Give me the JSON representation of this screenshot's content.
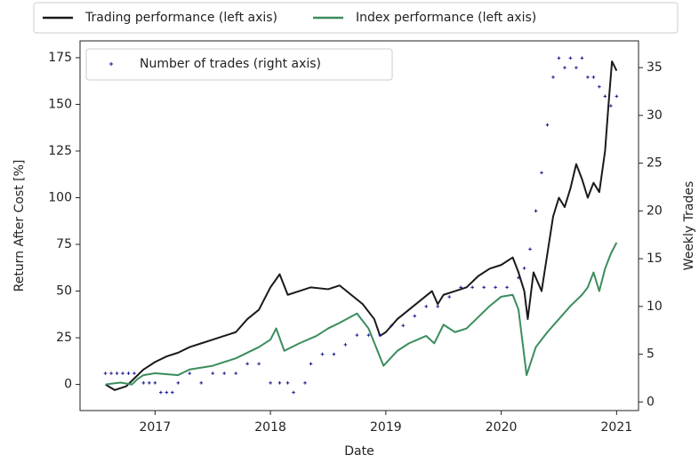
{
  "chart_data": {
    "type": "line",
    "xlabel": "Date",
    "ylabel": "Return After Cost [%]",
    "y2label": "Weekly Trades",
    "xlim": [
      2016.35,
      2021.19
    ],
    "xticks": [
      2017,
      2018,
      2019,
      2020,
      2021
    ],
    "ylim": [
      -14,
      184
    ],
    "yticks": [
      0,
      25,
      50,
      75,
      100,
      125,
      150,
      175
    ],
    "y2lim": [
      -0.9,
      37.8
    ],
    "y2ticks": [
      0,
      5,
      10,
      15,
      20,
      25,
      30,
      35
    ],
    "grid": false,
    "series": [
      {
        "name": "Trading performance (left axis)",
        "type": "line",
        "color": "#1a1a1a",
        "legend_loc": "top",
        "x": [
          2016.57,
          2016.65,
          2016.7,
          2016.75,
          2016.8,
          2016.9,
          2017.0,
          2017.1,
          2017.2,
          2017.3,
          2017.4,
          2017.5,
          2017.6,
          2017.7,
          2017.8,
          2017.9,
          2018.0,
          2018.08,
          2018.15,
          2018.25,
          2018.35,
          2018.5,
          2018.6,
          2018.7,
          2018.8,
          2018.9,
          2018.95,
          2019.0,
          2019.1,
          2019.2,
          2019.3,
          2019.4,
          2019.45,
          2019.5,
          2019.6,
          2019.7,
          2019.8,
          2019.9,
          2020.0,
          2020.1,
          2020.15,
          2020.2,
          2020.23,
          2020.28,
          2020.35,
          2020.4,
          2020.45,
          2020.5,
          2020.55,
          2020.6,
          2020.65,
          2020.7,
          2020.75,
          2020.8,
          2020.85,
          2020.9,
          2020.93,
          2020.96,
          2021.0
        ],
        "values": [
          0,
          -3,
          -2,
          -1,
          2,
          8,
          12,
          15,
          17,
          20,
          22,
          24,
          26,
          28,
          35,
          40,
          52,
          59,
          48,
          50,
          52,
          51,
          53,
          48,
          43,
          35,
          26,
          28,
          35,
          40,
          45,
          50,
          43,
          48,
          50,
          52,
          58,
          62,
          64,
          68,
          60,
          50,
          35,
          60,
          50,
          70,
          90,
          100,
          95,
          105,
          118,
          110,
          100,
          108,
          103,
          125,
          150,
          173,
          168
        ]
      },
      {
        "name": "Index performance (left axis)",
        "type": "line",
        "color": "#3a8d5d",
        "legend_loc": "top",
        "x": [
          2016.57,
          2016.7,
          2016.8,
          2016.85,
          2016.9,
          2017.0,
          2017.2,
          2017.3,
          2017.5,
          2017.7,
          2017.9,
          2018.0,
          2018.05,
          2018.12,
          2018.25,
          2018.4,
          2018.5,
          2018.6,
          2018.75,
          2018.85,
          2018.98,
          2019.1,
          2019.2,
          2019.35,
          2019.42,
          2019.5,
          2019.6,
          2019.7,
          2019.8,
          2019.9,
          2020.0,
          2020.1,
          2020.15,
          2020.22,
          2020.3,
          2020.4,
          2020.5,
          2020.6,
          2020.7,
          2020.75,
          2020.8,
          2020.85,
          2020.9,
          2020.95,
          2021.0
        ],
        "values": [
          0,
          1,
          0,
          3,
          5,
          6,
          5,
          8,
          10,
          14,
          20,
          24,
          30,
          18,
          22,
          26,
          30,
          33,
          38,
          30,
          10,
          18,
          22,
          26,
          22,
          32,
          28,
          30,
          36,
          42,
          47,
          48,
          40,
          5,
          20,
          28,
          35,
          42,
          48,
          52,
          60,
          50,
          62,
          70,
          76
        ]
      },
      {
        "name": "Number of trades (right axis)",
        "type": "scatter",
        "color": "#1a1a8c",
        "axis": "y2",
        "legend_loc": "upper left",
        "x": [
          2016.57,
          2016.62,
          2016.67,
          2016.72,
          2016.77,
          2016.82,
          2016.9,
          2016.95,
          2017.0,
          2017.05,
          2017.1,
          2017.15,
          2017.2,
          2017.3,
          2017.4,
          2017.5,
          2017.6,
          2017.7,
          2017.8,
          2017.9,
          2018.0,
          2018.08,
          2018.15,
          2018.2,
          2018.3,
          2018.35,
          2018.45,
          2018.55,
          2018.65,
          2018.75,
          2018.85,
          2018.95,
          2019.05,
          2019.15,
          2019.25,
          2019.35,
          2019.45,
          2019.55,
          2019.65,
          2019.75,
          2019.85,
          2019.95,
          2020.05,
          2020.15,
          2020.2,
          2020.25,
          2020.3,
          2020.35,
          2020.4,
          2020.45,
          2020.5,
          2020.55,
          2020.6,
          2020.65,
          2020.7,
          2020.75,
          2020.8,
          2020.85,
          2020.9,
          2020.95,
          2021.0
        ],
        "values": [
          3,
          3,
          3,
          3,
          3,
          3,
          2,
          2,
          2,
          1,
          1,
          1,
          2,
          3,
          2,
          3,
          3,
          3,
          4,
          4,
          2,
          2,
          2,
          1,
          2,
          4,
          5,
          5,
          6,
          7,
          7,
          7,
          8,
          8,
          9,
          10,
          10,
          11,
          12,
          12,
          12,
          12,
          12,
          13,
          14,
          16,
          20,
          24,
          29,
          34,
          36,
          35,
          36,
          35,
          36,
          34,
          34,
          33,
          32,
          31,
          32
        ]
      }
    ]
  }
}
